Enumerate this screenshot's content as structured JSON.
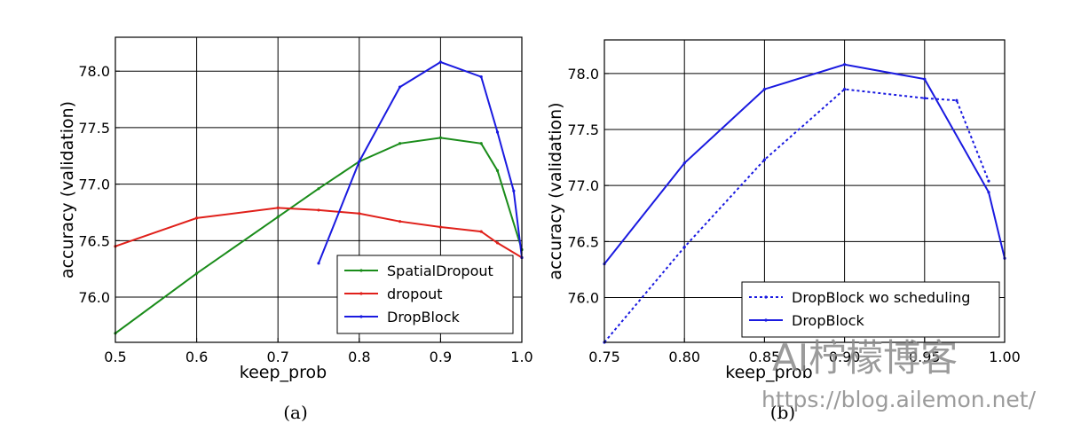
{
  "chart_data": [
    {
      "type": "line",
      "xlabel": "keep_prob",
      "ylabel": "accuracy (validation)",
      "caption": "(a)",
      "xlim": [
        0.5,
        1.0
      ],
      "ylim": [
        75.6,
        78.3
      ],
      "xticks": [
        "0.5",
        "0.6",
        "0.7",
        "0.8",
        "0.9",
        "1.0"
      ],
      "yticks": [
        "76.0",
        "76.5",
        "77.0",
        "77.5",
        "78.0"
      ],
      "legend_position": "lower-right",
      "grid": true,
      "series": [
        {
          "name": "SpatialDropout",
          "color": "#1a8c1a",
          "dash": "solid",
          "x": [
            0.5,
            0.6,
            0.7,
            0.75,
            0.8,
            0.85,
            0.9,
            0.95,
            0.97,
            1.0
          ],
          "y": [
            75.68,
            76.21,
            76.71,
            76.96,
            77.2,
            77.36,
            77.41,
            77.36,
            77.12,
            76.42
          ]
        },
        {
          "name": "dropout",
          "color": "#e0201a",
          "dash": "solid",
          "x": [
            0.5,
            0.6,
            0.7,
            0.75,
            0.8,
            0.85,
            0.9,
            0.95,
            0.97,
            1.0
          ],
          "y": [
            76.45,
            76.7,
            76.79,
            76.77,
            76.74,
            76.67,
            76.62,
            76.58,
            76.48,
            76.35
          ]
        },
        {
          "name": "DropBlock",
          "color": "#1a1ae0",
          "dash": "solid",
          "x": [
            0.75,
            0.8,
            0.85,
            0.9,
            0.95,
            0.97,
            0.99,
            1.0
          ],
          "y": [
            76.3,
            77.2,
            77.86,
            78.08,
            77.95,
            77.46,
            76.94,
            76.35
          ]
        }
      ]
    },
    {
      "type": "line",
      "xlabel": "keep_prob",
      "ylabel": "accuracy (validation)",
      "caption": "(b)",
      "xlim": [
        0.75,
        1.0
      ],
      "ylim": [
        75.6,
        78.3
      ],
      "xticks": [
        "0.75",
        "0.80",
        "0.85",
        "0.90",
        "0.95",
        "1.00"
      ],
      "yticks": [
        "76.0",
        "76.5",
        "77.0",
        "77.5",
        "78.0"
      ],
      "legend_position": "lower-right",
      "grid": true,
      "series": [
        {
          "name": "DropBlock wo scheduling",
          "color": "#1a1ae0",
          "dash": "dotted",
          "x": [
            0.75,
            0.8,
            0.85,
            0.9,
            0.95,
            0.97,
            0.99
          ],
          "y": [
            75.6,
            76.45,
            77.23,
            77.86,
            77.78,
            77.76,
            77.04
          ]
        },
        {
          "name": "DropBlock",
          "color": "#1a1ae0",
          "dash": "solid",
          "x": [
            0.75,
            0.8,
            0.85,
            0.9,
            0.95,
            0.99,
            1.0
          ],
          "y": [
            76.3,
            77.2,
            77.86,
            78.08,
            77.95,
            76.94,
            76.35
          ]
        }
      ]
    }
  ],
  "watermark": {
    "title": "AI柠檬博客",
    "url": "https://blog.ailemon.net/"
  }
}
